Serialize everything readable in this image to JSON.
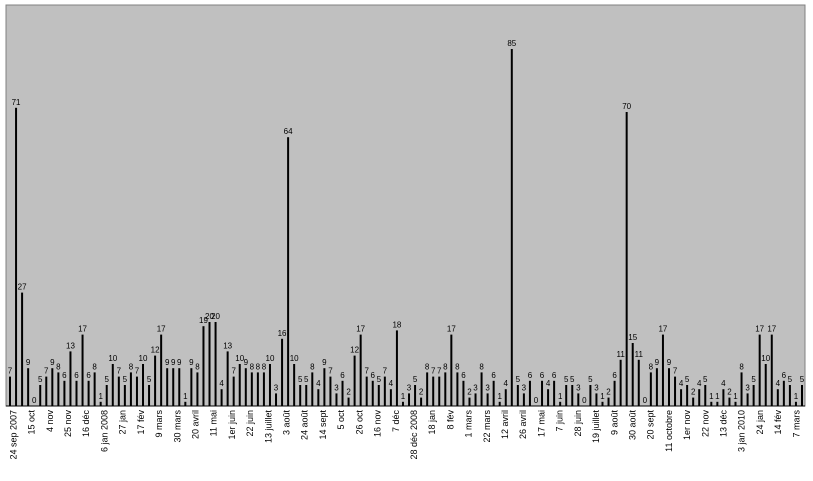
{
  "chart_data": {
    "type": "bar",
    "title": "",
    "xlabel": "",
    "ylabel": "",
    "ylim": [
      0,
      90
    ],
    "grid": false,
    "legend": "none",
    "colors": {
      "bar": "#000000",
      "plot_background": "#c0c0c0",
      "page_background": "#ffffff"
    },
    "values": [
      7,
      71,
      27,
      9,
      0,
      5,
      7,
      9,
      8,
      6,
      13,
      6,
      17,
      6,
      8,
      1,
      5,
      10,
      7,
      5,
      8,
      7,
      10,
      5,
      12,
      17,
      9,
      9,
      9,
      1,
      9,
      8,
      19,
      20,
      20,
      4,
      13,
      7,
      10,
      9,
      8,
      8,
      8,
      10,
      3,
      16,
      64,
      10,
      5,
      5,
      8,
      4,
      9,
      7,
      3,
      6,
      2,
      12,
      17,
      7,
      6,
      5,
      7,
      4,
      18,
      1,
      3,
      5,
      2,
      8,
      7,
      7,
      8,
      17,
      8,
      6,
      2,
      3,
      8,
      3,
      6,
      1,
      4,
      85,
      5,
      3,
      6,
      0,
      6,
      4,
      6,
      1,
      5,
      5,
      3,
      0,
      5,
      3,
      1,
      2,
      6,
      11,
      70,
      15,
      11,
      0,
      8,
      9,
      17,
      9,
      7,
      4,
      5,
      2,
      4,
      5,
      1,
      1,
      4,
      2,
      1,
      8,
      3,
      5,
      17,
      10,
      17,
      4,
      6,
      5,
      1,
      5
    ],
    "tick_labels": [
      "24 sep 2007",
      "15 oct",
      "4 nov",
      "25 nov",
      "16 déc",
      "6 jan 2008",
      "27 jan",
      "17 fév",
      "9 mars",
      "30 mars",
      "20 avril",
      "11 mai",
      "1er juin",
      "22 juin",
      "13 juillet",
      "3 août",
      "24 août",
      "14 sept",
      "5 oct",
      "26 oct",
      "16 nov",
      "7 déc",
      "28 déc 2008",
      "18 jan",
      "8 fév",
      "1 mars",
      "22 mars",
      "12 avril",
      "26 avril",
      "17 mai",
      "7 juin",
      "28 juin",
      "19 juillet",
      "9 août",
      "30 août",
      "20 sept",
      "11 octobre",
      "1er nov",
      "22 nov",
      "13 déc",
      "3 jan 2010",
      "24 jan",
      "14 fév",
      "7 mars"
    ]
  }
}
